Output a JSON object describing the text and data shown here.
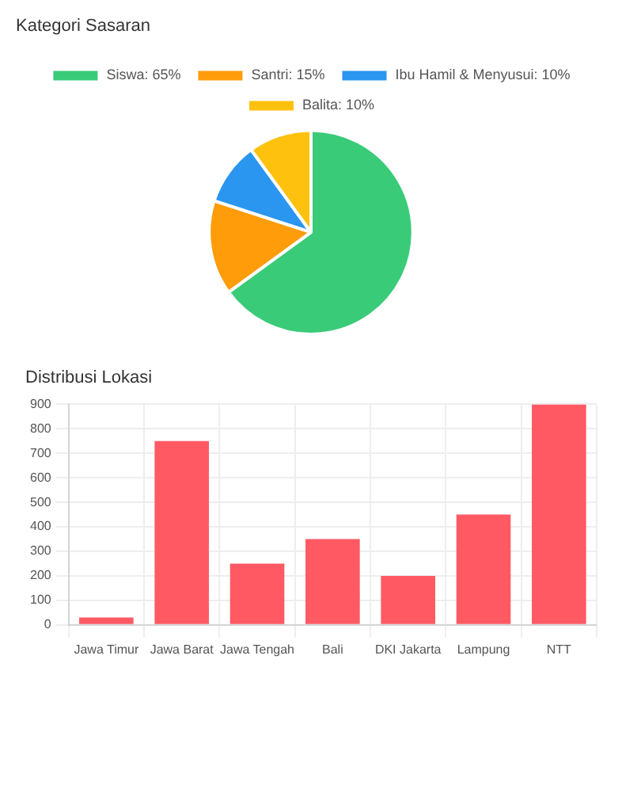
{
  "chart_data": [
    {
      "type": "pie",
      "title": "Kategori Sasaran",
      "categories": [
        "Siswa: 65%",
        "Santri: 15%",
        "Ibu Hamil & Menyusui: 10%",
        "Balita: 10%"
      ],
      "values": [
        65,
        15,
        10,
        10
      ],
      "colors": [
        "#3acb78",
        "#ff9c0a",
        "#2a96ef",
        "#fec10e"
      ],
      "legend": "top"
    },
    {
      "type": "bar",
      "title": "Distribusi Lokasi",
      "categories": [
        "Jawa Timur",
        "Jawa Barat",
        "Jawa Tengah",
        "Bali",
        "DKI Jakarta",
        "Lampung",
        "NTT"
      ],
      "values": [
        30,
        750,
        250,
        350,
        200,
        450,
        900
      ],
      "color": "#ff5a64",
      "ylim": [
        0,
        900
      ],
      "yticks": [
        0,
        100,
        200,
        300,
        400,
        500,
        600,
        700,
        800,
        900
      ],
      "grid": true
    }
  ]
}
